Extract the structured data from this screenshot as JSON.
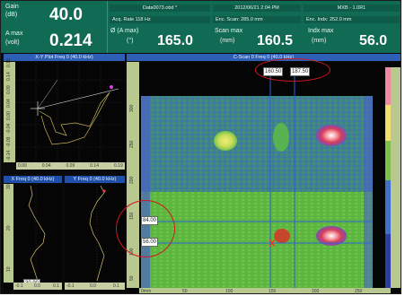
{
  "header": {
    "gain_label": "Gain",
    "gain_unit": "(dB)",
    "gain_value": "40.0",
    "amax_label": "A max",
    "amax_unit": "(volt)",
    "amax_value": "0.214",
    "file_name": "Data0073.obd *",
    "acq_rate": "Acq. Rate 118  Hz",
    "angle_label": "Ø (A max)",
    "angle_unit": "(°)",
    "angle_value": "165.0",
    "datetime": "2012/06/21  2:04 PM",
    "enc_scan": "Enc. Scan:  285.0 mm",
    "scan_max_label": "Scan max",
    "scan_max_unit": "(mm)",
    "scan_max_value": "160.5",
    "model": "MXB - 1.0R1",
    "enc_index": "Enc. Indx:  252.0 mm",
    "index_max_label": "Indx max",
    "index_max_unit": "(mm)",
    "index_max_value": "56.0"
  },
  "panes": {
    "xy_title": "X-Y Plot Freq 0 (40.0 kHz)",
    "cscan_title": "C-Scan 0 Freq 0 (40.0 kHz)",
    "xfreq_title": "X Freq 0 (40.0 kHz)",
    "yfreq_title": "Y Freq 0 (40.0 kHz)",
    "xy_bottom_ticks": [
      "0.00",
      "0.04",
      "0.09",
      "0.14",
      "0.19"
    ],
    "xy_left_ticks": [
      "-0.14",
      "-0.09",
      "-0.04",
      "0.00",
      "0.04",
      "0.09",
      "0.14",
      "0.19"
    ],
    "x_left_ticks": [
      "10",
      "20",
      "30"
    ],
    "x_bottom_ticks": [
      "-0.1",
      "0.0",
      "0.1"
    ],
    "y_bottom_ticks": [
      "-0.1",
      "0.0",
      "0.1"
    ]
  },
  "cscan": {
    "cursor_scan_a": "160.50",
    "cursor_scan_b": "187.50",
    "cursor_index_a": "84.00",
    "cursor_index_b": "56.00",
    "left_ticks": [
      "300",
      "250",
      "200",
      "150",
      "100",
      "50"
    ],
    "bottom_ticks": [
      "0mm",
      "50",
      "100",
      "150",
      "200",
      "250"
    ],
    "side_scale": [
      "300",
      "250",
      "200",
      "150",
      "100",
      "50"
    ]
  },
  "xfreq_box": "30.90",
  "colors": {
    "header_bg": "#116a54",
    "pane_title": "#2e5fb6",
    "annotation": "#d0181f",
    "cursor": "#2a61d8"
  }
}
